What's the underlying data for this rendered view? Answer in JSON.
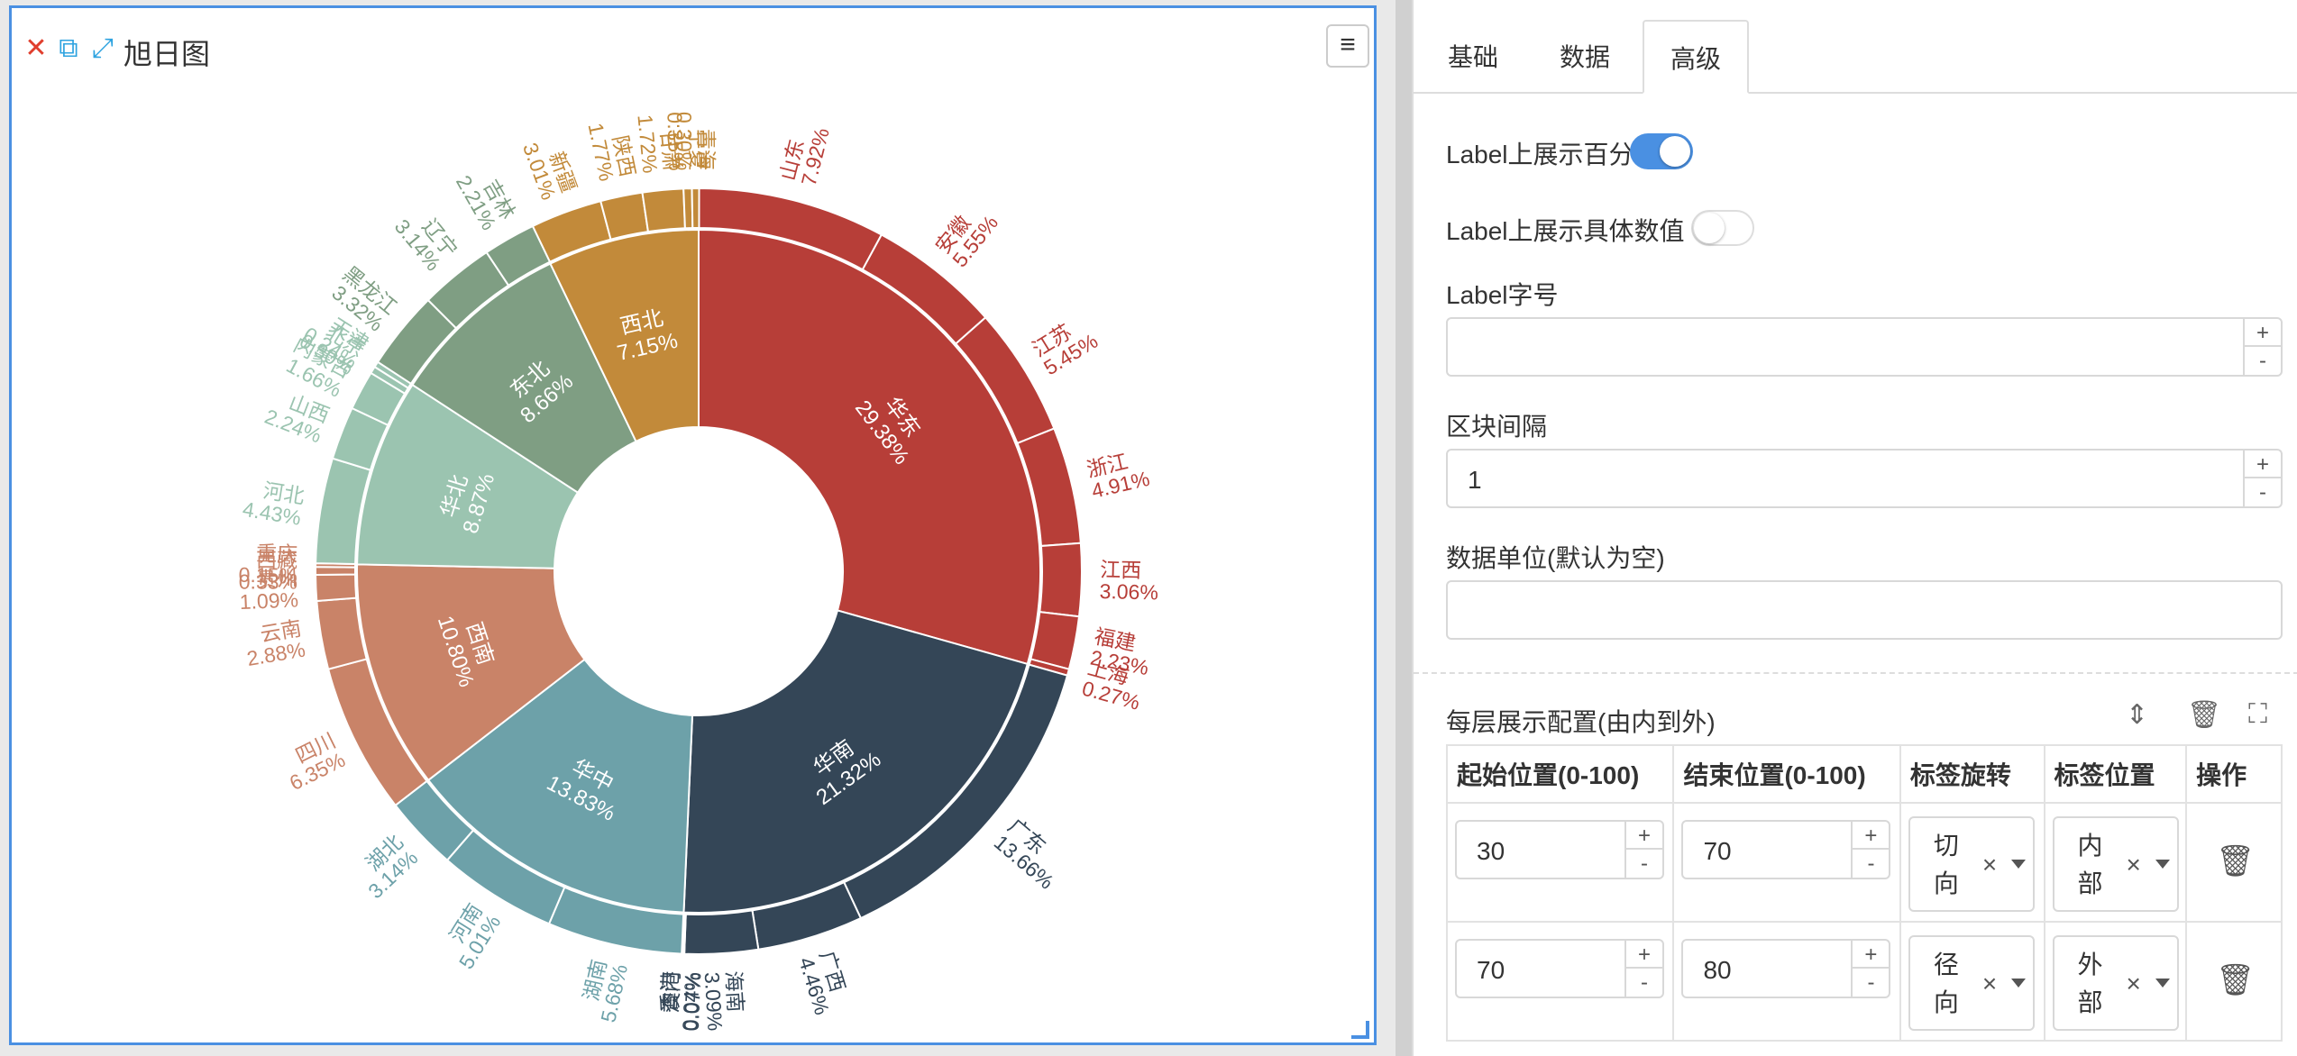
{
  "chart": {
    "title": "旭日图",
    "close_icon": "close-icon",
    "copy_icon": "copy-icon",
    "expand_icon": "expand-icon",
    "menu_icon": "hamburger-menu-icon"
  },
  "chart_data": {
    "type": "sunburst",
    "inner": [
      {
        "name": "华东",
        "pct": "29.38%",
        "value": 29.38,
        "color": "#b73e38"
      },
      {
        "name": "华南",
        "pct": "21.32%",
        "value": 21.32,
        "color": "#344657"
      },
      {
        "name": "华中",
        "pct": "13.83%",
        "value": 13.83,
        "color": "#6da1a9"
      },
      {
        "name": "西南",
        "pct": "10.80%",
        "value": 10.8,
        "color": "#c98368"
      },
      {
        "name": "华北",
        "pct": "8.87%",
        "value": 8.87,
        "color": "#9bc4b0"
      },
      {
        "name": "东北",
        "pct": "8.66%",
        "value": 8.66,
        "color": "#7f9e83"
      },
      {
        "name": "西北",
        "pct": "7.15%",
        "value": 7.15,
        "color": "#c28a3a"
      }
    ],
    "outer": [
      {
        "name": "山东",
        "pct": "7.92%",
        "value": 7.92,
        "parent": "华东"
      },
      {
        "name": "安徽",
        "pct": "5.55%",
        "value": 5.55,
        "parent": "华东"
      },
      {
        "name": "江苏",
        "pct": "5.45%",
        "value": 5.45,
        "parent": "华东"
      },
      {
        "name": "浙江",
        "pct": "4.91%",
        "value": 4.91,
        "parent": "华东"
      },
      {
        "name": "江西",
        "pct": "3.06%",
        "value": 3.06,
        "parent": "华东"
      },
      {
        "name": "福建",
        "pct": "2.23%",
        "value": 2.23,
        "parent": "华东"
      },
      {
        "name": "上海",
        "pct": "0.27%",
        "value": 0.27,
        "parent": "华东"
      },
      {
        "name": "广东",
        "pct": "13.66%",
        "value": 13.66,
        "parent": "华南"
      },
      {
        "name": "广西",
        "pct": "4.46%",
        "value": 4.46,
        "parent": "华南"
      },
      {
        "name": "海南",
        "pct": "3.09%",
        "value": 3.09,
        "parent": "华南"
      },
      {
        "name": "澳门",
        "pct": "0.07%",
        "value": 0.07,
        "parent": "华南"
      },
      {
        "name": "香港",
        "pct": "0.04%",
        "value": 0.04,
        "parent": "华南"
      },
      {
        "name": "湖南",
        "pct": "5.68%",
        "value": 5.68,
        "parent": "华中"
      },
      {
        "name": "河南",
        "pct": "5.01%",
        "value": 5.01,
        "parent": "华中"
      },
      {
        "name": "湖北",
        "pct": "3.14%",
        "value": 3.14,
        "parent": "华中"
      },
      {
        "name": "四川",
        "pct": "6.35%",
        "value": 6.35,
        "parent": "西南"
      },
      {
        "name": "云南",
        "pct": "2.88%",
        "value": 2.88,
        "parent": "西南"
      },
      {
        "name": "贵州",
        "pct": "1.09%",
        "value": 1.09,
        "parent": "西南"
      },
      {
        "name": "西藏",
        "pct": "0.33%",
        "value": 0.33,
        "parent": "西南"
      },
      {
        "name": "重庆",
        "pct": "0.15%",
        "value": 0.15,
        "parent": "西南"
      },
      {
        "name": "河北",
        "pct": "4.43%",
        "value": 4.43,
        "parent": "华北"
      },
      {
        "name": "山西",
        "pct": "2.24%",
        "value": 2.24,
        "parent": "华北"
      },
      {
        "name": "内蒙古",
        "pct": "1.66%",
        "value": 1.66,
        "parent": "华北"
      },
      {
        "name": "北京",
        "pct": "0.30%",
        "value": 0.3,
        "parent": "华北"
      },
      {
        "name": "天津",
        "pct": "0.24%",
        "value": 0.24,
        "parent": "华北"
      },
      {
        "name": "黑龙江",
        "pct": "3.32%",
        "value": 3.32,
        "parent": "东北"
      },
      {
        "name": "辽宁",
        "pct": "3.14%",
        "value": 3.14,
        "parent": "东北"
      },
      {
        "name": "吉林",
        "pct": "2.21%",
        "value": 2.21,
        "parent": "东北"
      },
      {
        "name": "新疆",
        "pct": "3.01%",
        "value": 3.01,
        "parent": "西北"
      },
      {
        "name": "陕西",
        "pct": "1.77%",
        "value": 1.77,
        "parent": "西北"
      },
      {
        "name": "甘肃",
        "pct": "1.72%",
        "value": 1.72,
        "parent": "西北"
      },
      {
        "name": "宁夏",
        "pct": "0.35%",
        "value": 0.35,
        "parent": "西北"
      },
      {
        "name": "青海",
        "pct": "0.30%",
        "value": 0.3,
        "parent": "西北"
      }
    ]
  },
  "settings": {
    "tabs": [
      "基础",
      "数据",
      "高级"
    ],
    "active_tab": "高级",
    "show_pct_label": "Label上展示百分比",
    "show_pct_on": true,
    "show_value_label": "Label上展示具体数值",
    "show_value_on": false,
    "font_size_label": "Label字号",
    "font_size_value": "",
    "gap_label": "区块间隔",
    "gap_value": "1",
    "unit_label": "数据单位(默认为空)",
    "unit_value": "",
    "layer_title": "每层展示配置(由内到外)",
    "icons": {
      "sort": "sort-icon",
      "trash": "trash-icon",
      "fullscreen": "fullscreen-icon"
    },
    "stepper_plus": "+",
    "stepper_minus": "-",
    "table": {
      "headers": [
        "起始位置(0-100)",
        "结束位置(0-100)",
        "标签旋转",
        "标签位置",
        "操作"
      ],
      "rows": [
        {
          "start": "30",
          "end": "70",
          "rotate": "切向",
          "position": "内部"
        },
        {
          "start": "70",
          "end": "80",
          "rotate": "径向",
          "position": "外部"
        }
      ]
    }
  }
}
